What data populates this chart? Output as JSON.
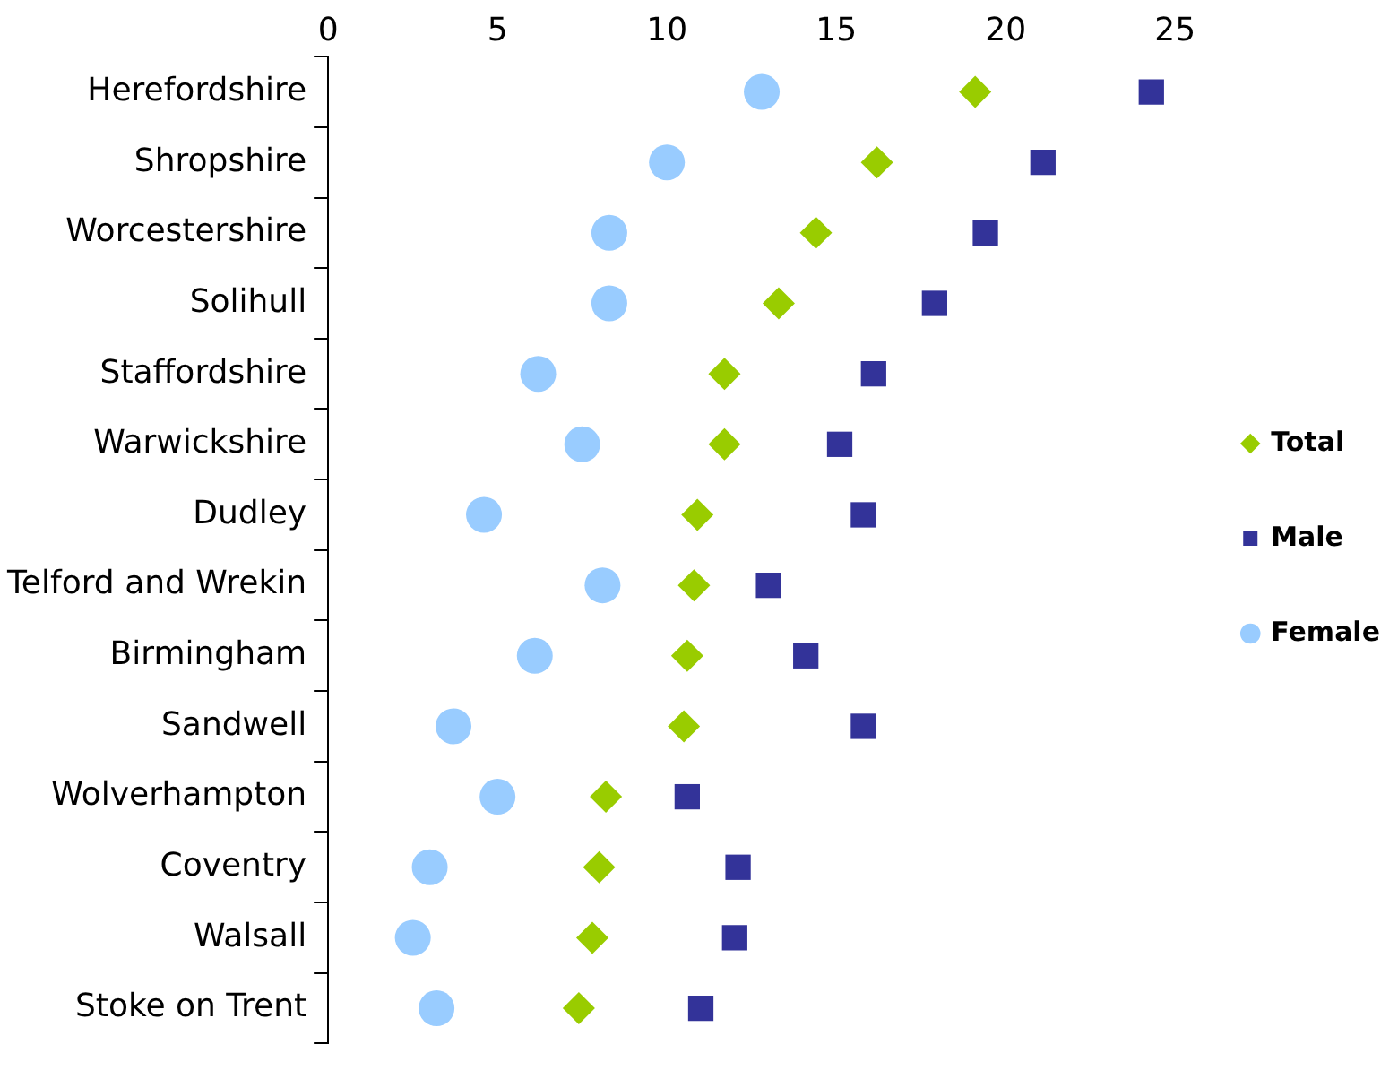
{
  "chart_data": {
    "type": "scatter",
    "categories": [
      "Herefordshire",
      "Shropshire",
      "Worcestershire",
      "Solihull",
      "Staffordshire",
      "Warwickshire",
      "Dudley",
      "Telford and Wrekin",
      "Birmingham",
      "Sandwell",
      "Wolverhampton",
      "Coventry",
      "Walsall",
      "Stoke on Trent"
    ],
    "series": [
      {
        "name": "Total",
        "color": "#99cc00",
        "marker": "diamond",
        "values": [
          19.1,
          16.2,
          14.4,
          13.3,
          11.7,
          11.7,
          10.9,
          10.8,
          10.6,
          10.5,
          8.2,
          8.0,
          7.8,
          7.4
        ]
      },
      {
        "name": "Male",
        "color": "#333399",
        "marker": "square",
        "values": [
          24.3,
          21.1,
          19.4,
          17.9,
          16.1,
          15.1,
          15.8,
          13.0,
          14.1,
          15.8,
          10.6,
          12.1,
          12.0,
          11.0
        ]
      },
      {
        "name": "Female",
        "color": "#99ccff",
        "marker": "circle",
        "values": [
          12.8,
          10.0,
          8.3,
          8.3,
          6.2,
          7.5,
          4.6,
          8.1,
          6.1,
          3.7,
          5.0,
          3.0,
          2.5,
          3.2
        ]
      }
    ],
    "orientation": "horizontal",
    "xlim": [
      0,
      25
    ],
    "xticks": [
      0,
      5,
      10,
      15,
      20,
      25
    ],
    "grid": false,
    "legend": "right"
  }
}
